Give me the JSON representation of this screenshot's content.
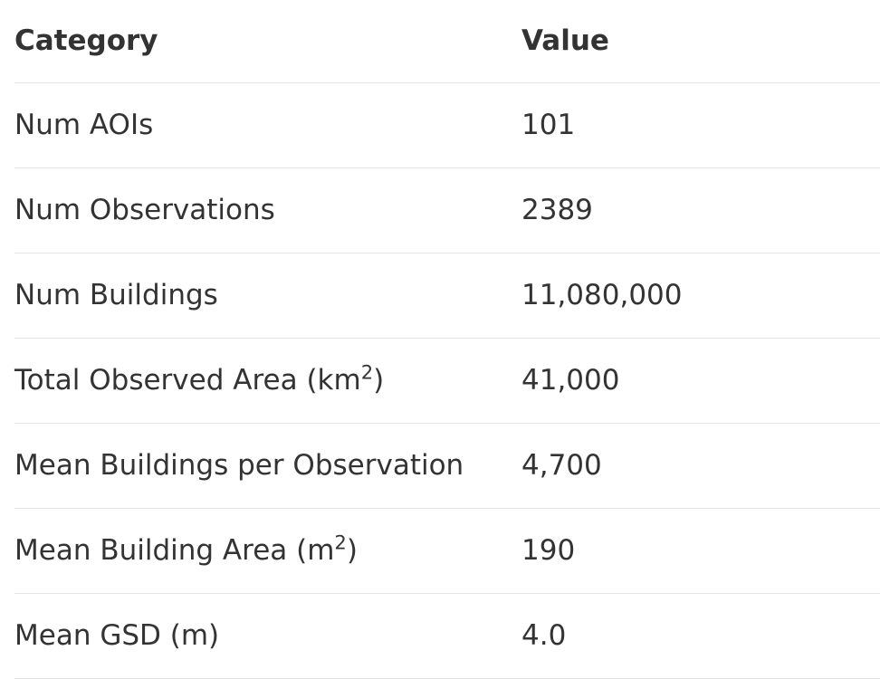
{
  "table": {
    "headers": {
      "category": "Category",
      "value": "Value"
    },
    "rows": [
      {
        "category": "Num AOIs",
        "value": "101"
      },
      {
        "category": "Num Observations",
        "value": "2389"
      },
      {
        "category": "Num Buildings",
        "value": "11,080,000"
      },
      {
        "category": "Total Observed Area (km",
        "category_sup": "2",
        "category_suffix": ")",
        "value": "41,000"
      },
      {
        "category": "Mean Buildings per Observation",
        "value": "4,700"
      },
      {
        "category": "Mean Building Area (m",
        "category_sup": "2",
        "category_suffix": ")",
        "value": "190"
      },
      {
        "category": "Mean GSD (m)",
        "value": "4.0"
      }
    ]
  }
}
